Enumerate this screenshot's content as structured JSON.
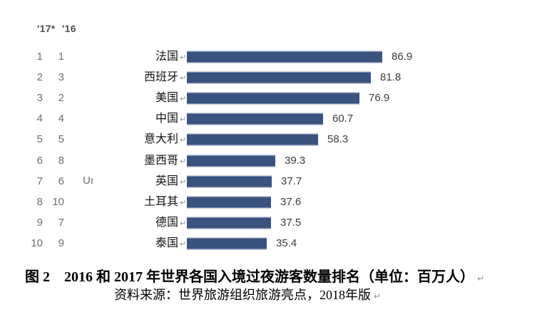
{
  "page": {
    "header": {
      "col_2017": "'17*",
      "col_2016": "'16"
    },
    "stray_text": "Uı",
    "return_mark": "↵",
    "caption": {
      "line1": "图 2　2016 和 2017 年世界各国入境过夜游客数量排名（单位：百万人）",
      "line2": "资料来源：世界旅游组织旅游亮点，2018年版"
    }
  },
  "chart_data": {
    "type": "bar",
    "orientation": "horizontal",
    "title": "2016 和 2017 年世界各国入境过夜游客数量排名",
    "unit": "百万人",
    "source_note": "资料来源：世界旅游组织旅游亮点，2018年版",
    "legend_headers": [
      "'17*",
      "'16"
    ],
    "categories": [
      "法国",
      "西班牙",
      "美国",
      "中国",
      "意大利",
      "墨西哥",
      "英国",
      "土耳其",
      "德国",
      "泰国"
    ],
    "values": [
      86.9,
      81.8,
      76.9,
      60.7,
      58.3,
      39.3,
      37.7,
      37.6,
      37.5,
      35.4
    ],
    "rank_2017": [
      "1",
      "2",
      "3",
      "4",
      "5",
      "6",
      "7",
      "8",
      "9",
      "10"
    ],
    "rank_2016": [
      "1",
      "3",
      "2",
      "4",
      "5",
      "8",
      "6",
      "10",
      "7",
      "9"
    ],
    "xlim": [
      0,
      95
    ],
    "grid": false,
    "legend_position": "top-left",
    "bar_color": "#3A527E",
    "value_label_color": "#3d3d3d"
  }
}
